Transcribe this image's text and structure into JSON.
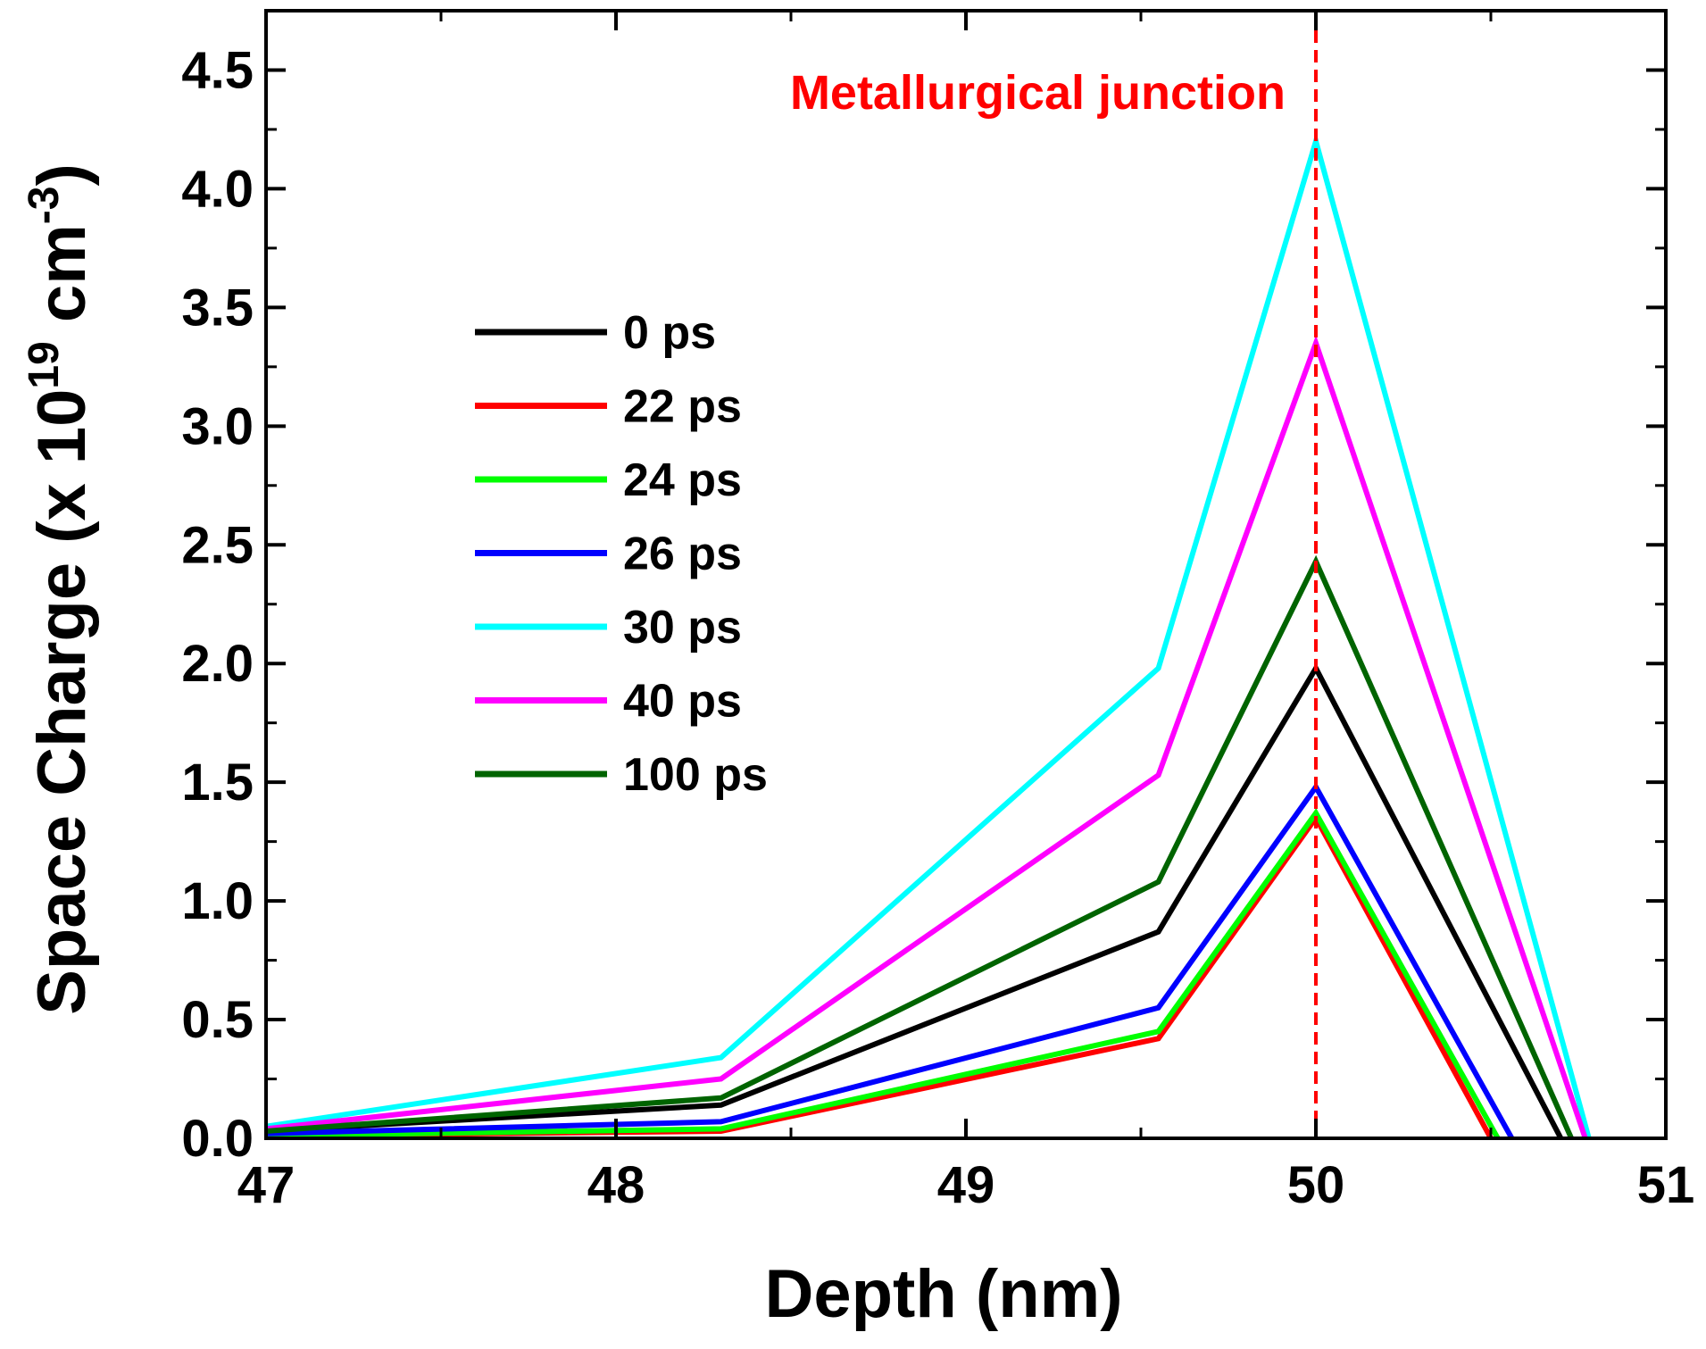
{
  "chart_data": {
    "type": "line",
    "xlabel": "Depth (nm)",
    "ylabel": {
      "prefix": "Space Charge (x 10",
      "exp1": "19",
      "mid": " cm",
      "exp2": "-3",
      "suffix": ")"
    },
    "xlim": [
      47,
      51
    ],
    "ylim": [
      0,
      4.75
    ],
    "xticks": [
      "47",
      "48",
      "49",
      "50",
      "51"
    ],
    "xtick_values": [
      47,
      48,
      49,
      50,
      51
    ],
    "yticks": [
      "0.0",
      "0.5",
      "1.0",
      "1.5",
      "2.0",
      "2.5",
      "3.0",
      "3.5",
      "4.0",
      "4.5"
    ],
    "ytick_values": [
      0,
      0.5,
      1.0,
      1.5,
      2.0,
      2.5,
      3.0,
      3.5,
      4.0,
      4.5
    ],
    "legend_position": "center-left",
    "annotation": {
      "text": "Metallurgical junction",
      "x": 50,
      "color": "#ff0000"
    },
    "series": [
      {
        "name": "0 ps",
        "color": "#000000",
        "x": [
          47,
          48.3,
          49.55,
          50,
          50.7
        ],
        "y": [
          0.03,
          0.14,
          0.87,
          1.98,
          0
        ]
      },
      {
        "name": "22 ps",
        "color": "#ff0000",
        "x": [
          47,
          48.3,
          49.55,
          50,
          50.5
        ],
        "y": [
          0.01,
          0.03,
          0.42,
          1.35,
          0
        ]
      },
      {
        "name": "24 ps",
        "color": "#00ff00",
        "x": [
          47,
          48.3,
          49.55,
          50,
          50.52
        ],
        "y": [
          0.01,
          0.04,
          0.45,
          1.37,
          0
        ]
      },
      {
        "name": "26 ps",
        "color": "#0000ff",
        "x": [
          47,
          48.3,
          49.55,
          50,
          50.56
        ],
        "y": [
          0.02,
          0.07,
          0.55,
          1.48,
          0
        ]
      },
      {
        "name": "30 ps",
        "color": "#00ffff",
        "x": [
          47,
          48.3,
          49.55,
          50,
          50.78
        ],
        "y": [
          0.05,
          0.34,
          1.98,
          4.2,
          0
        ]
      },
      {
        "name": "40 ps",
        "color": "#ff00ff",
        "x": [
          47,
          48.3,
          49.55,
          50,
          50.77
        ],
        "y": [
          0.04,
          0.25,
          1.53,
          3.35,
          0
        ]
      },
      {
        "name": "100 ps",
        "color": "#006400",
        "x": [
          47,
          48.3,
          49.55,
          50,
          50.73
        ],
        "y": [
          0.03,
          0.17,
          1.08,
          2.43,
          0
        ]
      }
    ]
  }
}
